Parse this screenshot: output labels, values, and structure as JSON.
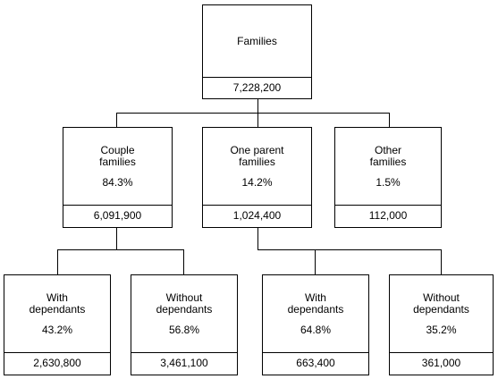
{
  "root": {
    "label": "Families",
    "value": "7,228,200"
  },
  "couple": {
    "label": "Couple\nfamilies",
    "percent": "84.3%",
    "value": "6,091,900"
  },
  "one_parent": {
    "label": "One parent\nfamilies",
    "percent": "14.2%",
    "value": "1,024,400"
  },
  "other": {
    "label": "Other\nfamilies",
    "percent": "1.5%",
    "value": "112,000"
  },
  "couple_with": {
    "label": "With\ndependants",
    "percent": "43.2%",
    "value": "2,630,800"
  },
  "couple_without": {
    "label": "Without\ndependants",
    "percent": "56.8%",
    "value": "3,461,100"
  },
  "one_parent_with": {
    "label": "With\ndependants",
    "percent": "64.8%",
    "value": "663,400"
  },
  "one_parent_without": {
    "label": "Without\ndependants",
    "percent": "35.2%",
    "value": "361,000"
  }
}
